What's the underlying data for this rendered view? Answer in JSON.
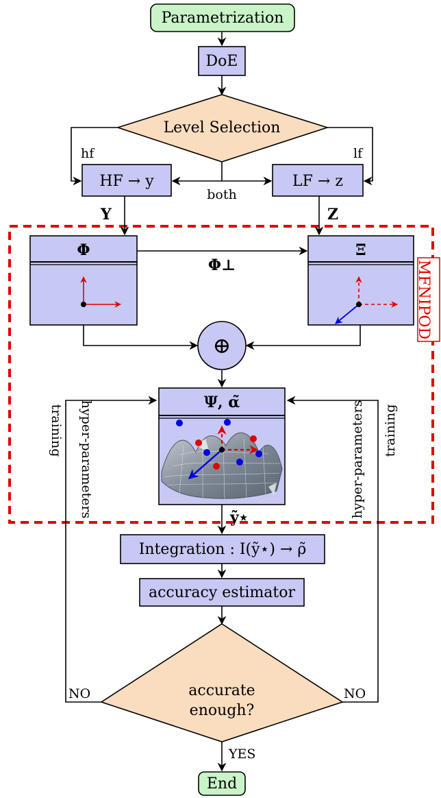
{
  "colors": {
    "box_fill": "#c8c8f4",
    "terminal_fill": "#c8f4c8",
    "decision_fill": "#fadcbe",
    "accent_red": "#e00000",
    "vector_blue": "#0000e0",
    "surface": "#9aa4ae"
  },
  "nodes": {
    "start": "Parametrization",
    "doe": "DoE",
    "level_selection": "Level Selection",
    "hf": "HF → y",
    "lf": "LF → z",
    "phi": "Φ",
    "xi": "Ξ",
    "direct_sum": "⊕",
    "psi_alpha": "Ψ, α̃",
    "integration": "Integration : I(ỹ⋆) → ρ̃",
    "accuracy": "accuracy estimator",
    "accurate_q_line1": "accurate",
    "accurate_q_line2": "enough?",
    "end": "End"
  },
  "edge_labels": {
    "hf": "hf",
    "lf": "lf",
    "both": "both",
    "Y": "Y",
    "Z": "Z",
    "phi_perp": "Φ⊥",
    "y_star": "ỹ⋆",
    "no_left": "NO",
    "no_right": "NO",
    "yes": "YES",
    "hyper_left": "hyper-parameters",
    "training_left": "training",
    "hyper_right": "hyper-parameters",
    "training_right": "training"
  },
  "group_label": "MFNIPOD",
  "icons": {
    "phi_basis": "2d-basis-vectors-icon",
    "xi_basis": "3d-basis-vectors-icon",
    "surface": "gaussian-process-surface-icon"
  }
}
